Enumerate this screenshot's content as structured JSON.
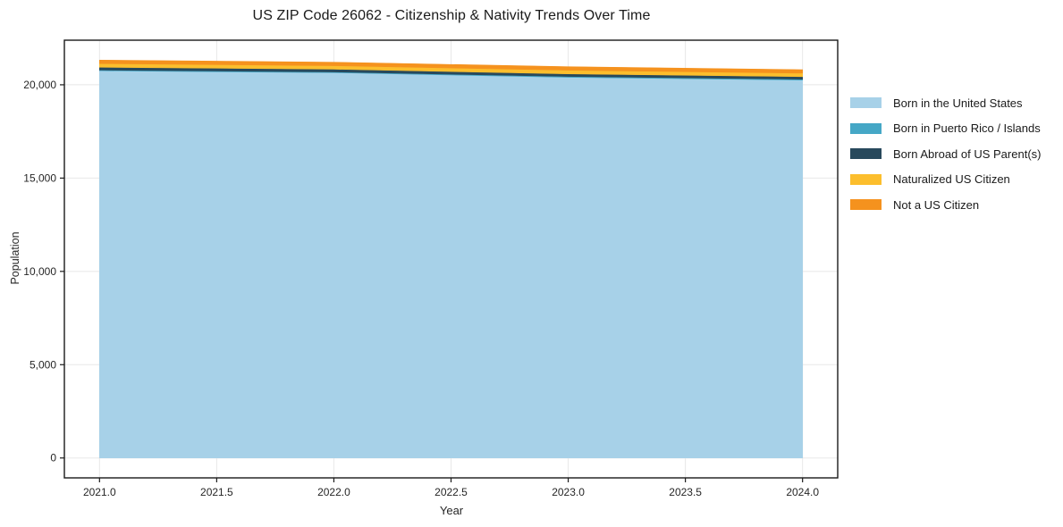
{
  "chart_data": {
    "type": "area",
    "stacked": true,
    "title": "US ZIP Code 26062 - Citizenship & Nativity Trends Over Time",
    "xlabel": "Year",
    "ylabel": "Population",
    "x": [
      2021,
      2022,
      2023,
      2024
    ],
    "series": [
      {
        "name": "Born in the United States",
        "color": "#a7d1e8",
        "values": [
          20750,
          20650,
          20400,
          20250
        ]
      },
      {
        "name": "Born in Puerto Rico / Islands",
        "color": "#45a7c6",
        "values": [
          40,
          40,
          45,
          50
        ]
      },
      {
        "name": "Born Abroad of US Parent(s)",
        "color": "#28495c",
        "values": [
          150,
          145,
          140,
          135
        ]
      },
      {
        "name": "Naturalized US Citizen",
        "color": "#fcbe2d",
        "values": [
          195,
          190,
          195,
          190
        ]
      },
      {
        "name": "Not a US Citizen",
        "color": "#f5921e",
        "values": [
          190,
          185,
          190,
          185
        ]
      }
    ],
    "x_ticks": {
      "values": [
        2021.0,
        2021.5,
        2022.0,
        2022.5,
        2023.0,
        2023.5,
        2024.0
      ],
      "labels": [
        "2021.0",
        "2021.5",
        "2022.0",
        "2022.5",
        "2023.0",
        "2023.5",
        "2024.0"
      ]
    },
    "y_ticks": {
      "values": [
        0,
        5000,
        10000,
        15000,
        20000
      ],
      "labels": [
        "0",
        "5,000",
        "10,000",
        "15,000",
        "20,000"
      ]
    },
    "xlim": [
      2020.85,
      2024.15
    ],
    "ylim": [
      -1066,
      22390
    ],
    "grid": true,
    "legend_position": "right",
    "colors": {
      "background": "#ffffff",
      "grid": "#e8e8e8",
      "frame": "#1a1a1a",
      "text": "#262626"
    }
  }
}
